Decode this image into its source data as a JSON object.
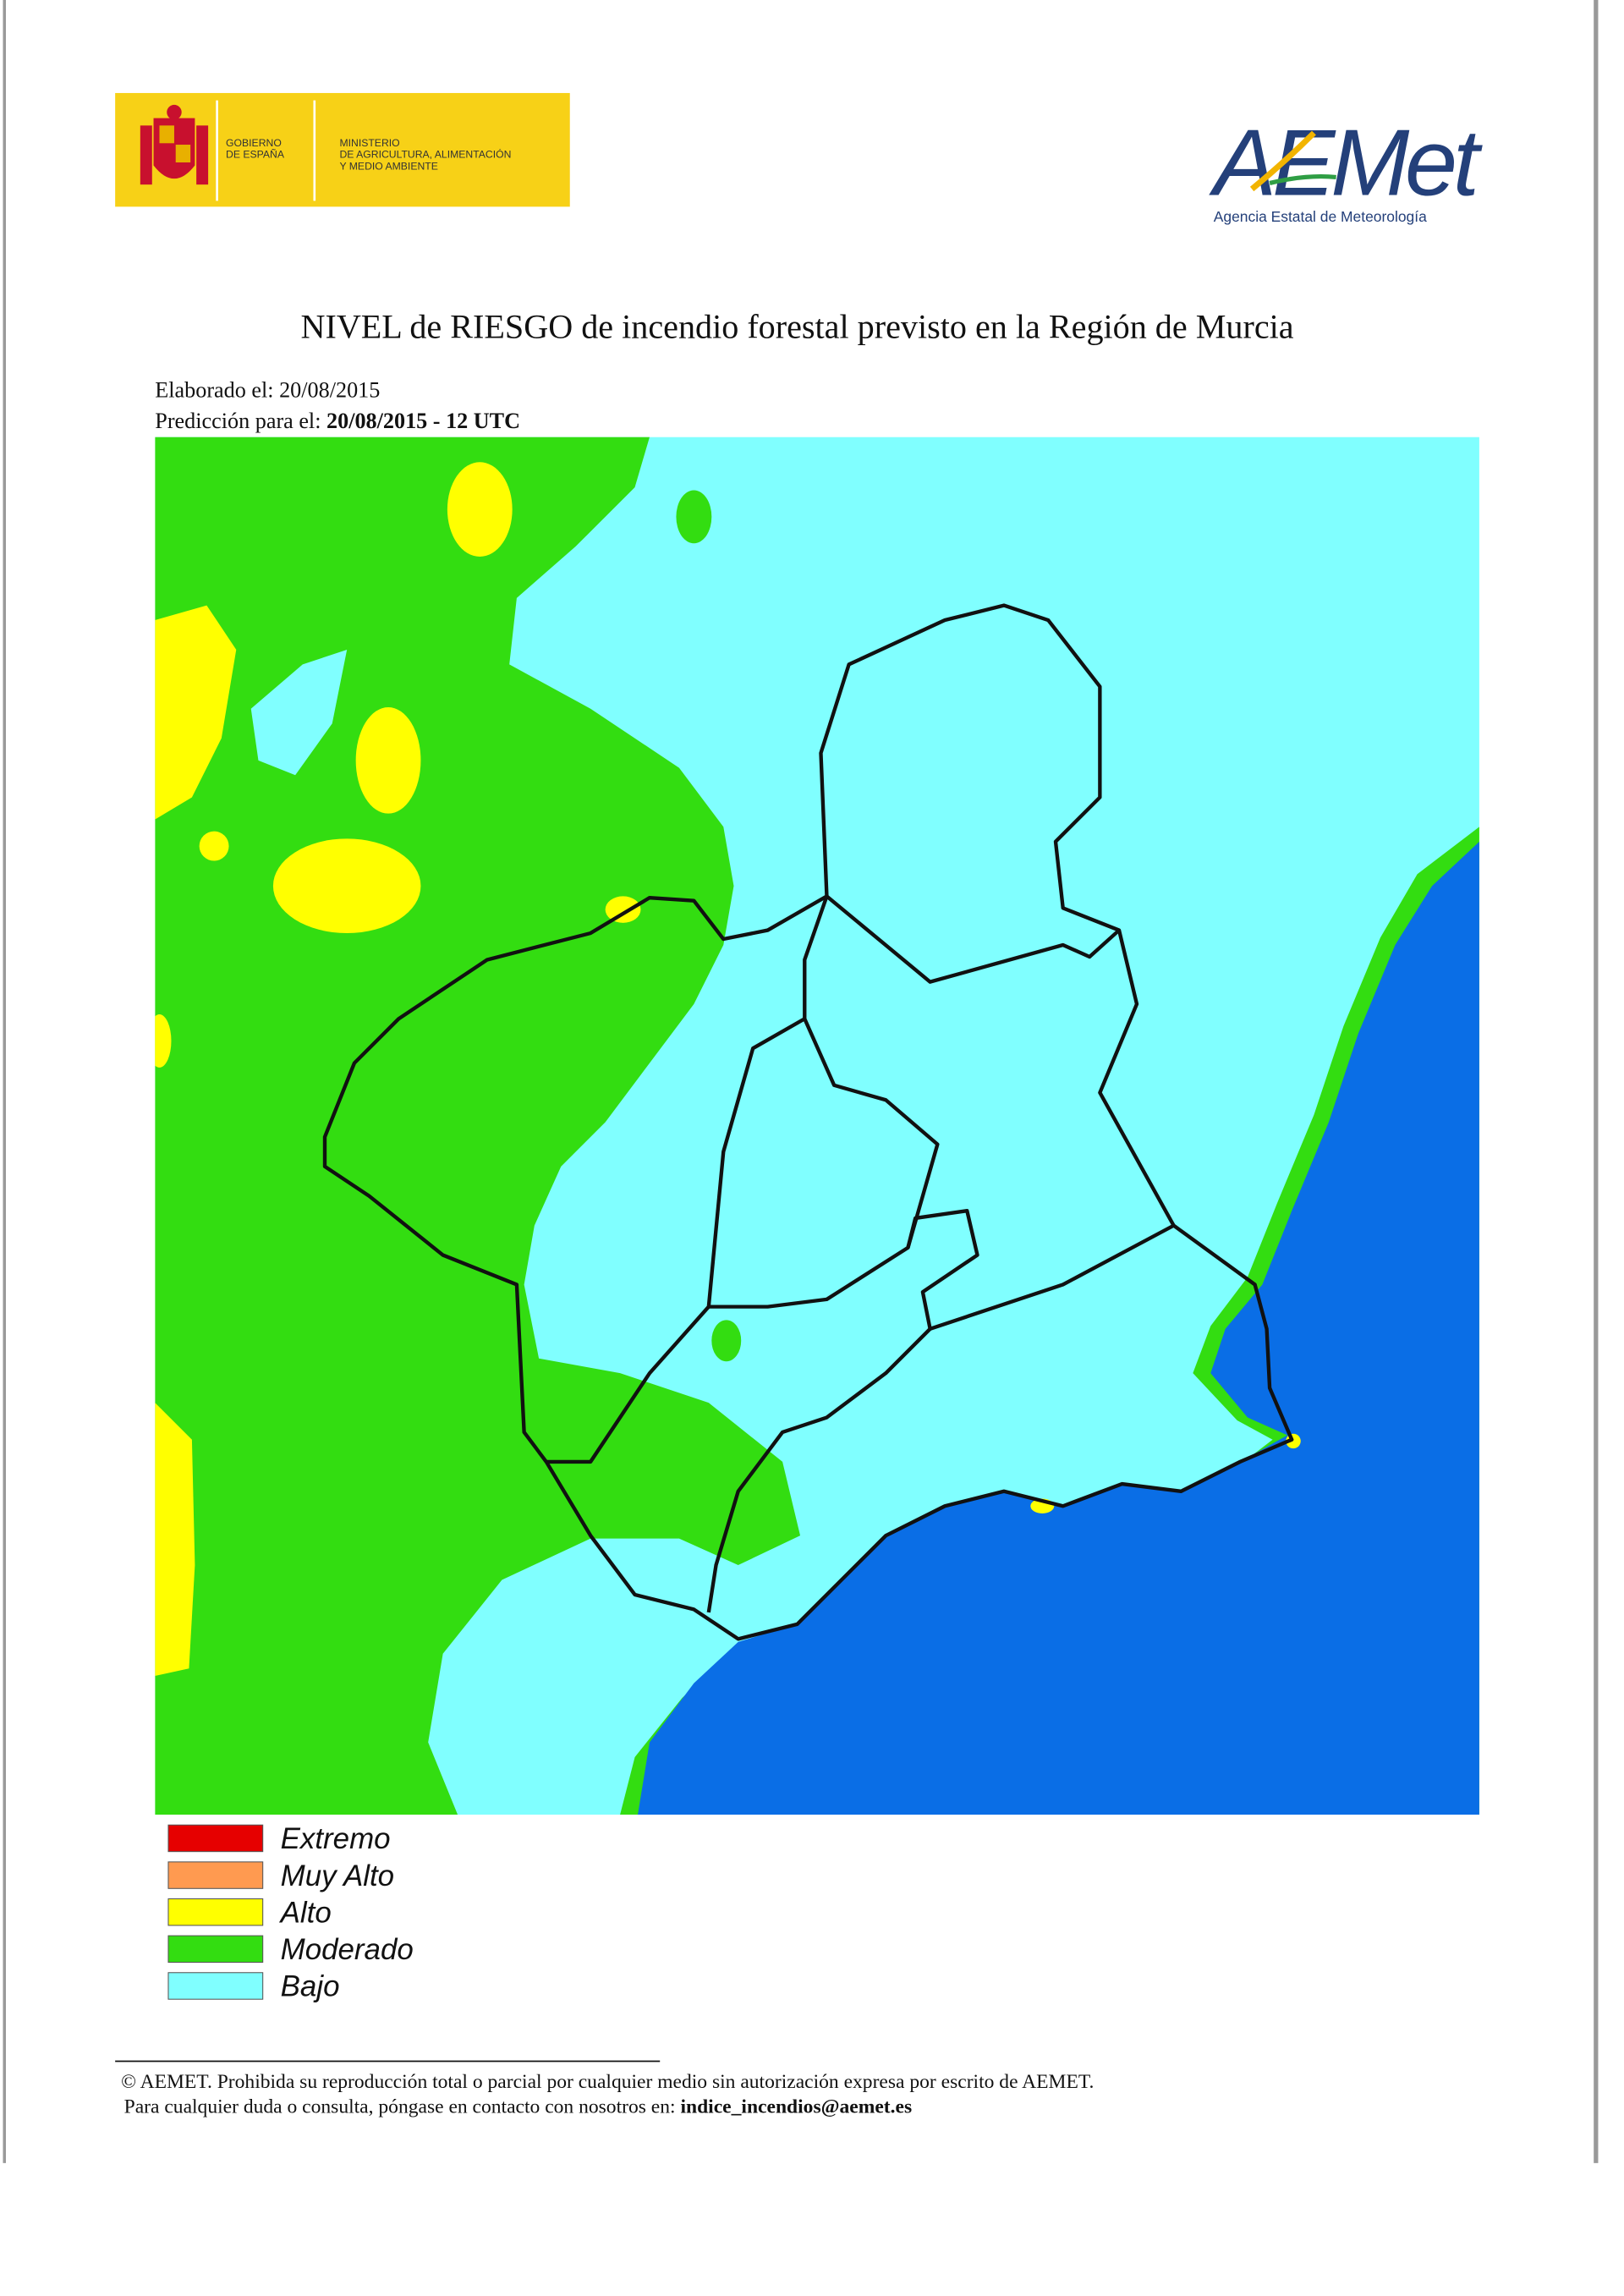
{
  "header": {
    "logo_gov": [
      "GOBIERNO",
      "DE ESPAÑA"
    ],
    "logo_ministry": [
      "MINISTERIO",
      "DE AGRICULTURA, ALIMENTACIÓN",
      "Y MEDIO AMBIENTE"
    ],
    "logo_aemet": "AEMet",
    "logo_aemet_subtitle": "Agencia Estatal de Meteorología"
  },
  "title": "NIVEL de RIESGO de incendio forestal previsto en la Región de Murcia",
  "elaborado": {
    "label": "Elaborado el:",
    "value": "20/08/2015"
  },
  "prediccion": {
    "label": "Predicción para el:",
    "value": "20/08/2015 - 12 UTC"
  },
  "legend": [
    {
      "label": "Extremo",
      "color": "#e60000"
    },
    {
      "label": "Muy Alto",
      "color": "#ff9a50"
    },
    {
      "label": "Alto",
      "color": "#ffff00"
    },
    {
      "label": "Moderado",
      "color": "#33dd11"
    },
    {
      "label": "Bajo",
      "color": "#80ffff"
    }
  ],
  "footer": {
    "line1": "© AEMET. Prohibida su reproducción total o parcial por cualquier medio sin autorización expresa por escrito de AEMET.",
    "line2": "Para cualquier duda o consulta, póngase en contacto con nosotros en:",
    "email": "indice_incendios@aemet.es"
  }
}
